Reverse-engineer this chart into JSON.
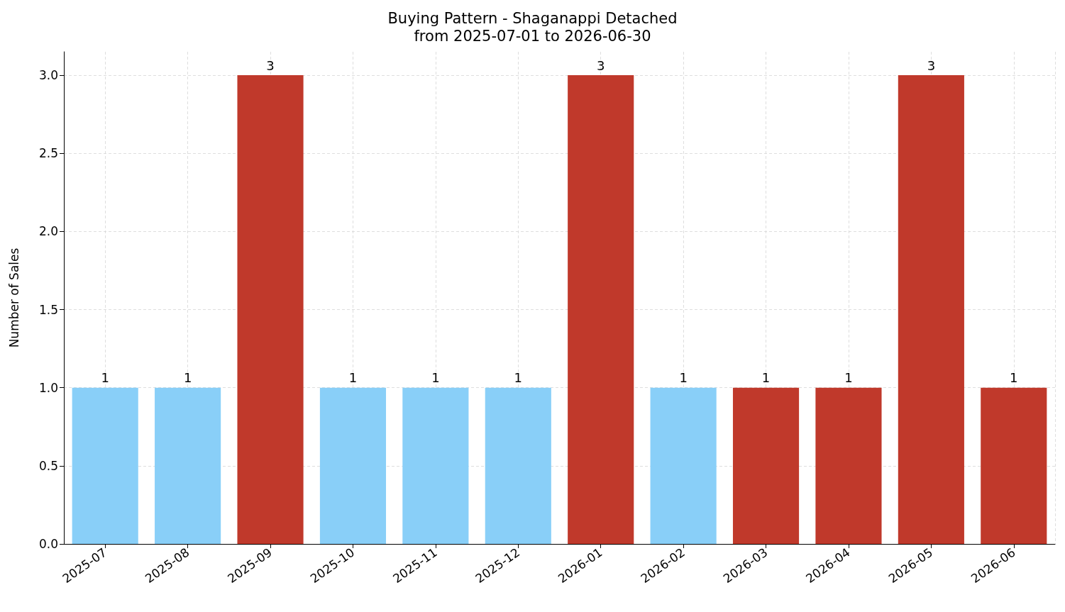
{
  "chart_data": {
    "type": "bar",
    "title": "Buying Pattern - Shaganappi Detached",
    "subtitle": "from 2025-07-01 to 2026-06-30",
    "ylabel": "Number of Sales",
    "categories": [
      "2025-07",
      "2025-08",
      "2025-09",
      "2025-10",
      "2025-11",
      "2025-12",
      "2026-01",
      "2026-02",
      "2026-03",
      "2026-04",
      "2026-05",
      "2026-06"
    ],
    "values": [
      1,
      1,
      3,
      1,
      1,
      1,
      3,
      1,
      1,
      1,
      3,
      1
    ],
    "colors": [
      "#89cff8",
      "#89cff8",
      "#c0392b",
      "#89cff8",
      "#89cff8",
      "#89cff8",
      "#c0392b",
      "#89cff8",
      "#c0392b",
      "#c0392b",
      "#c0392b",
      "#c0392b"
    ],
    "ylim": [
      0,
      3.15
    ],
    "yticks": [
      {
        "value": 0,
        "label": "0.0"
      },
      {
        "value": 0.5,
        "label": "0.5"
      },
      {
        "value": 1,
        "label": "1.0"
      },
      {
        "value": 1.5,
        "label": "1.5"
      },
      {
        "value": 2,
        "label": "2.0"
      },
      {
        "value": 2.5,
        "label": "2.5"
      },
      {
        "value": 3,
        "label": "3.0"
      }
    ],
    "data_labels": true,
    "grid": true
  }
}
